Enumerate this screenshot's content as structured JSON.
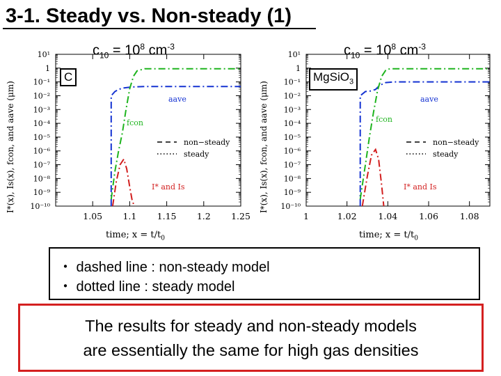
{
  "slide": {
    "title": "3-1. Steady vs. Non-steady (1)"
  },
  "panels": [
    {
      "cond_prefix": "c",
      "cond_sub": "10",
      "cond_mid": " = 10",
      "cond_sup": "8",
      "cond_unit": " cm",
      "cond_unit_sup": "-3",
      "species_main": "C",
      "species_sub": "",
      "ylabel": "I*(x), Is(x), fcon, and aave (μm)",
      "xlabel_main": "time; x = t/t",
      "xlabel_sub": "0",
      "ann_aave": "aave",
      "ann_fcon": "fcon",
      "ann_is": "I* and Is",
      "legend": [
        "non−steady",
        "steady"
      ]
    },
    {
      "cond_prefix": "c",
      "cond_sub": "10",
      "cond_mid": " = 10",
      "cond_sup": "8",
      "cond_unit": " cm",
      "cond_unit_sup": "-3",
      "species_main": "Mg",
      "species_mid": "SiO",
      "species_sub": "3",
      "ylabel": "I*(x), Is(x), fcon, and aave (μm)",
      "xlabel_main": "time; x = t/t",
      "xlabel_sub": "0",
      "ann_aave": "aave",
      "ann_fcon": "fcon",
      "ann_is": "I* and Is",
      "legend": [
        "non−steady",
        "steady"
      ]
    }
  ],
  "chart_data": [
    {
      "type": "line",
      "ylabel": "I*(x), Is(x), fcon, and aave (μm)",
      "xlabel": "time; x = t/t0",
      "y_scale": "log",
      "xlim": [
        1.0,
        1.25
      ],
      "ylim_exp": [
        -10,
        1
      ],
      "x_ticks": [
        "1.05",
        "1.1",
        "1.15",
        "1.2",
        "1.25"
      ],
      "y_ticks": [
        "10^1",
        "1",
        "10^-1",
        "10^-2",
        "10^-3",
        "10^-4",
        "10^-5",
        "10^-6",
        "10^-7",
        "10^-8",
        "10^-9",
        "10^-10"
      ],
      "legend_position": "right",
      "series": [
        {
          "name": "aave",
          "color": "#1432d2",
          "x": [
            1.075,
            1.075,
            1.08,
            1.085,
            1.09,
            1.1,
            1.11,
            1.12,
            1.25
          ],
          "log10y": [
            -10,
            -2.0,
            -1.7,
            -1.55,
            -1.45,
            -1.38,
            -1.35,
            -1.33,
            -1.33
          ]
        },
        {
          "name": "fcon",
          "color": "#1eb41e",
          "x": [
            1.075,
            1.08,
            1.085,
            1.09,
            1.095,
            1.1,
            1.105,
            1.11,
            1.12,
            1.25
          ],
          "log10y": [
            -9.5,
            -7.5,
            -6.0,
            -4.7,
            -3.0,
            -1.5,
            -0.6,
            -0.2,
            -0.05,
            -0.05
          ]
        },
        {
          "name": "I* and Is",
          "color": "#d21e1e",
          "x": [
            1.077,
            1.082,
            1.087,
            1.092,
            1.096,
            1.1,
            1.103,
            1.106
          ],
          "log10y": [
            -10,
            -8.2,
            -7.0,
            -6.6,
            -7.3,
            -8.6,
            -9.5,
            -10
          ]
        }
      ],
      "legend_entries": [
        "non−steady",
        "steady"
      ]
    },
    {
      "type": "line",
      "ylabel": "I*(x), Is(x), fcon, and aave (μm)",
      "xlabel": "time; x = t/t0",
      "y_scale": "log",
      "xlim": [
        1.0,
        1.09
      ],
      "ylim_exp": [
        -10,
        1
      ],
      "x_ticks": [
        "1",
        "1.02",
        "1.04",
        "1.06",
        "1.08"
      ],
      "y_ticks": [
        "10^1",
        "1",
        "10^-1",
        "10^-2",
        "10^-3",
        "10^-4",
        "10^-5",
        "10^-6",
        "10^-7",
        "10^-8",
        "10^-9",
        "10^-10"
      ],
      "legend_position": "right",
      "series": [
        {
          "name": "aave",
          "color": "#1432d2",
          "x": [
            1.0265,
            1.0265,
            1.029,
            1.032,
            1.034,
            1.036,
            1.039,
            1.043,
            1.09
          ],
          "log10y": [
            -10,
            -2.0,
            -1.7,
            -1.65,
            -1.55,
            -1.25,
            -1.05,
            -1.0,
            -1.0
          ]
        },
        {
          "name": "fcon",
          "color": "#1eb41e",
          "x": [
            1.0265,
            1.029,
            1.031,
            1.033,
            1.035,
            1.037,
            1.039,
            1.041,
            1.09
          ],
          "log10y": [
            -9.5,
            -7.0,
            -5.0,
            -3.2,
            -1.6,
            -0.6,
            -0.15,
            -0.05,
            -0.05
          ]
        },
        {
          "name": "I* and Is",
          "color": "#d21e1e",
          "x": [
            1.0275,
            1.03,
            1.032,
            1.034,
            1.0355,
            1.037,
            1.038
          ],
          "log10y": [
            -10,
            -7.8,
            -6.3,
            -5.9,
            -6.6,
            -8.5,
            -10
          ]
        }
      ],
      "legend_entries": [
        "non−steady",
        "steady"
      ]
    }
  ],
  "notes": {
    "line1": "・ dashed line : non-steady model",
    "line2": "・ dotted line : steady model"
  },
  "conclusion": {
    "line1": "The results for steady and non-steady models",
    "line2": "are essentially the same for high gas densities"
  },
  "colors": {
    "aave": "#1432d2",
    "fcon": "#1eb41e",
    "is": "#d21e1e",
    "conclusion_border": "#d42020"
  }
}
